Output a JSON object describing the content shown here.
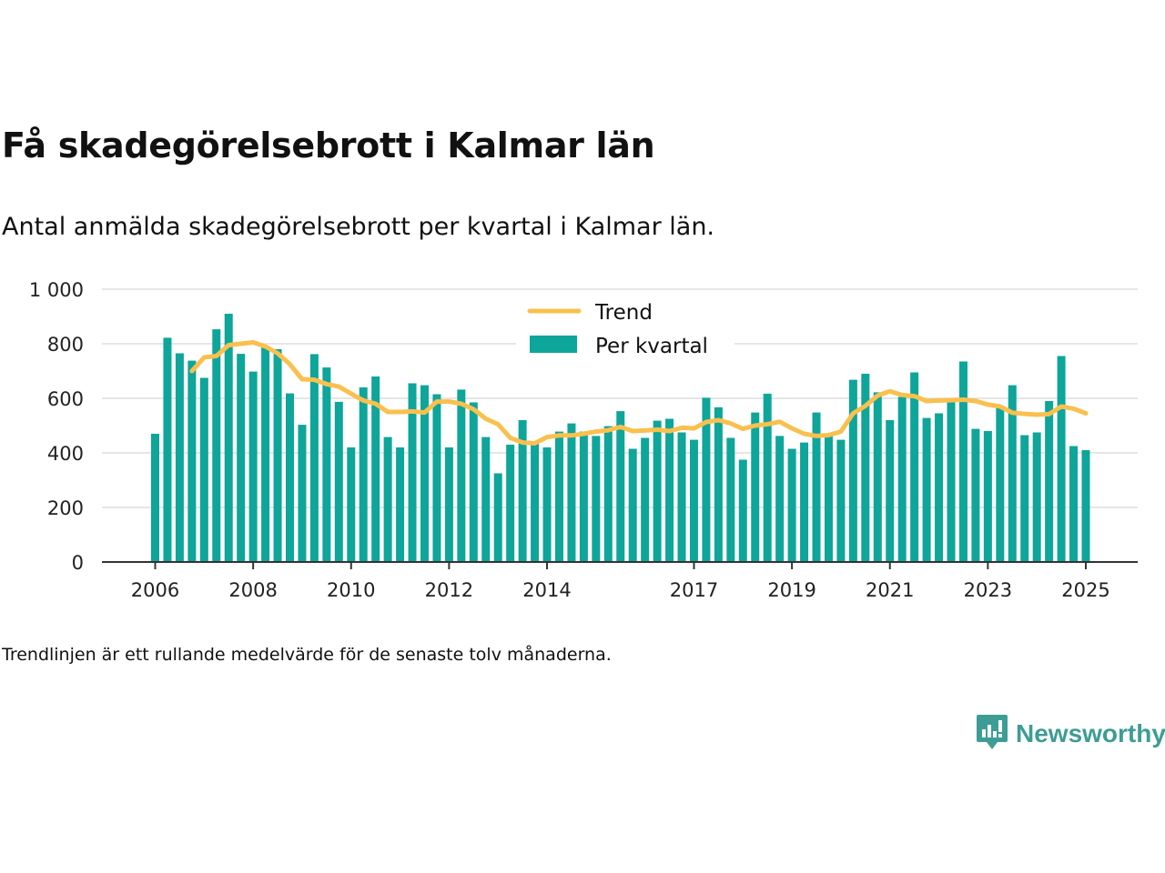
{
  "title": "Få skadegörelsebrott i Kalmar län",
  "subtitle": "Antal anmälda skadegörelsebrott per kvartal i Kalmar län.",
  "footnote": "Trendlinjen är ett rullande medelvärde för de senaste tolv månaderna.",
  "brand": {
    "name": "Newsworthy",
    "icon": "newsworthy-logo-icon",
    "color": "#3d9d94"
  },
  "colors": {
    "bars": "#0ea59a",
    "trend": "#f9c04e",
    "grid": "#dddddd",
    "axis": "#333333"
  },
  "chart_data": {
    "type": "bar",
    "y_axis": {
      "min": 0,
      "max": 1000,
      "ticks": [
        "0",
        "200",
        "400",
        "600",
        "800",
        "1 000"
      ]
    },
    "x_axis": {
      "ticks": [
        "2006",
        "2008",
        "2010",
        "2012",
        "2014",
        "2017",
        "2019",
        "2021",
        "2023",
        "2025"
      ]
    },
    "legend": {
      "position": "top-center"
    },
    "series": [
      {
        "name": "Per kvartal",
        "kind": "bar",
        "values": [
          470,
          822,
          765,
          738,
          675,
          853,
          910,
          763,
          698,
          790,
          780,
          618,
          503,
          762,
          713,
          587,
          420,
          640,
          680,
          458,
          420,
          655,
          648,
          615,
          420,
          632,
          585,
          458,
          325,
          430,
          520,
          440,
          420,
          478,
          508,
          478,
          462,
          498,
          553,
          415,
          455,
          518,
          525,
          475,
          448,
          602,
          567,
          455,
          375,
          548,
          617,
          462,
          415,
          438,
          548,
          468,
          448,
          668,
          690,
          622,
          520,
          605,
          695,
          528,
          545,
          585,
          735,
          488,
          480,
          565,
          648,
          465,
          475,
          590,
          755,
          425,
          410
        ]
      },
      {
        "name": "Trend",
        "kind": "line",
        "values": [
          null,
          null,
          null,
          700,
          750,
          755,
          795,
          800,
          805,
          790,
          765,
          725,
          670,
          668,
          652,
          643,
          617,
          592,
          580,
          550,
          550,
          552,
          548,
          588,
          588,
          580,
          560,
          525,
          505,
          455,
          438,
          435,
          458,
          464,
          464,
          470,
          478,
          483,
          495,
          480,
          482,
          485,
          480,
          492,
          490,
          513,
          520,
          508,
          488,
          500,
          505,
          514,
          490,
          470,
          462,
          465,
          478,
          545,
          572,
          610,
          626,
          612,
          608,
          590,
          592,
          593,
          595,
          590,
          577,
          570,
          547,
          543,
          540,
          542,
          570,
          562,
          545
        ]
      }
    ]
  }
}
